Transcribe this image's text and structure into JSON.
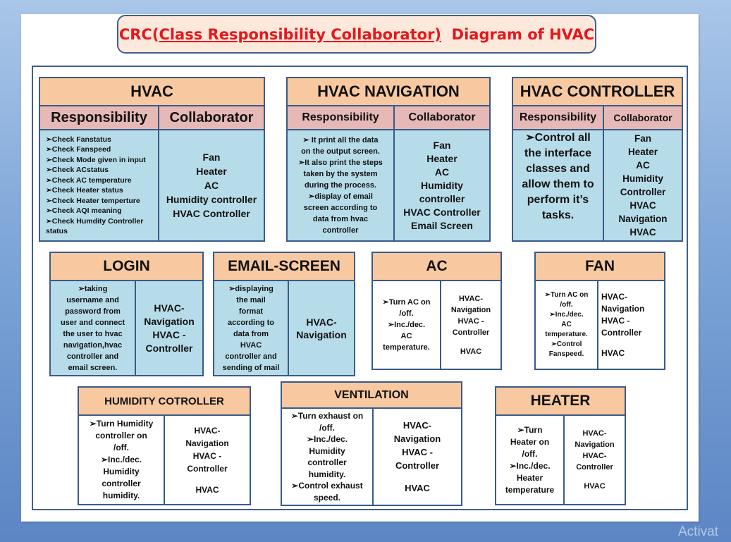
{
  "title": {
    "prefix": "CRC(",
    "underlined": "Class Responsibility Collaborator)",
    "suffix": "  Diagram of HVAC"
  },
  "hvac": {
    "name": "HVAC",
    "responsibility_header": "Responsibility",
    "collaborator_header": "Collaborator",
    "responsibilities": [
      "➢Check Fanstatus",
      "➢Check Fanspeed",
      "➢Check  Mode  given in input",
      "➢Check ACstatus",
      "➢Check AC temperature",
      "➢Check Heater status",
      "➢Check Heater temperture",
      "➢Check AQI meaning",
      "➢Check Humdity Controller",
      "status"
    ],
    "collaborators": [
      "Fan",
      "Heater",
      "AC",
      "Humidity controller",
      "HVAC Controller"
    ]
  },
  "hvac_navigation": {
    "name": "HVAC  NAVIGATION",
    "responsibility_header": "Responsibility",
    "collaborator_header": "Collaborator",
    "responsibilities": [
      "➢ It print all the data",
      "on the output screen.",
      "➢It also print the steps",
      "taken by the system",
      "during the process.",
      "➢display of email",
      "screen according to",
      "data from hvac",
      "controller"
    ],
    "collaborators": [
      "Fan",
      "Heater",
      "AC",
      "Humidity",
      "controller",
      "HVAC Controller",
      "Email Screen"
    ]
  },
  "hvac_controller": {
    "name": "HVAC  CONTROLLER",
    "responsibility_header": "Responsibility",
    "collaborator_header": "Collaborator",
    "responsibilities": [
      "➢Control all",
      "the interface",
      "classes and",
      "allow them to",
      "perform it’s",
      "tasks."
    ],
    "collaborators": [
      "Fan",
      "Heater",
      "AC",
      "Humidity",
      "Controller",
      "HVAC",
      "Navigation",
      "HVAC"
    ]
  },
  "login": {
    "name": "LOGIN",
    "responsibilities": [
      "➢taking",
      "username and",
      "password from",
      "user and connect",
      "the user to hvac",
      "navigation,hvac",
      "controller and",
      "email screen."
    ],
    "collaborators": [
      "HVAC-",
      "Navigation",
      "HVAC -",
      "Controller"
    ]
  },
  "email_screen": {
    "name": "EMAIL-SCREEN",
    "responsibilities": [
      "➢displaying",
      "the mail",
      "format",
      "according to",
      "data from",
      "HVAC",
      "controller and",
      "sending of mail"
    ],
    "collaborators": [
      "HVAC-",
      "Navigation"
    ]
  },
  "ac": {
    "name": "AC",
    "responsibilities": [
      "➢Turn AC on",
      "/off.",
      "➢Inc./dec.",
      "AC",
      "temperature."
    ],
    "collaborators": [
      "HVAC-",
      "Navigation",
      "HVAC -",
      "Controller",
      "",
      "HVAC"
    ]
  },
  "fan": {
    "name": "FAN",
    "responsibilities": [
      "➢Turn AC on",
      "/off.",
      "➢Inc./dec.",
      "AC",
      "temperature.",
      "➢Control",
      "Fanspeed."
    ],
    "collaborators": [
      "HVAC-",
      "Navigation",
      "HVAC -",
      "Controller",
      "",
      "HVAC"
    ]
  },
  "humidity": {
    "name": "HUMIDITY COTROLLER",
    "responsibilities": [
      "➢Turn Humidity",
      "controller on",
      "/off.",
      "➢Inc./dec.",
      "Humidity",
      "controller",
      "humidity."
    ],
    "collaborators": [
      "HVAC-",
      "Navigation",
      "HVAC -",
      "Controller",
      "",
      "HVAC"
    ]
  },
  "ventilation": {
    "name": "VENTILATION",
    "responsibilities": [
      "➢Turn exhaust on",
      "/off.",
      "➢Inc./dec.",
      "Humidity",
      "controller",
      "humidity.",
      "➢Control exhaust",
      "speed."
    ],
    "collaborators": [
      "HVAC-",
      "Navigation",
      "HVAC -",
      "Controller",
      "",
      "HVAC"
    ]
  },
  "heater": {
    "name": "HEATER",
    "responsibilities": [
      "➢Turn",
      "Heater on",
      "/off.",
      "➢Inc./dec.",
      "Heater",
      "temperature"
    ],
    "collaborators": [
      "HVAC-",
      "Navigation",
      "HVAC-",
      "Controller",
      "",
      "HVAC"
    ]
  },
  "watermark": "Activat"
}
